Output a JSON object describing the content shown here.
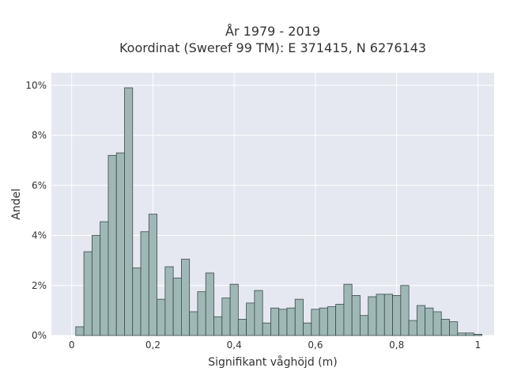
{
  "chart_data": {
    "type": "bar",
    "title_lines": [
      "År 1979 - 2019",
      "Koordinat (Sweref 99 TM): E 371415, N 6276143"
    ],
    "xlabel": "Signifikant våghöjd (m)",
    "ylabel": "Andel",
    "xlim": [
      -0.05,
      1.04
    ],
    "ylim": [
      0,
      10.5
    ],
    "x_ticks": [
      {
        "value": 0,
        "label": "0"
      },
      {
        "value": 0.2,
        "label": "0,2"
      },
      {
        "value": 0.4,
        "label": "0,4"
      },
      {
        "value": 0.6,
        "label": "0,6"
      },
      {
        "value": 0.8,
        "label": "0,8"
      },
      {
        "value": 1.0,
        "label": "1"
      }
    ],
    "y_ticks": [
      {
        "value": 0,
        "label": "0%"
      },
      {
        "value": 2,
        "label": "2%"
      },
      {
        "value": 4,
        "label": "4%"
      },
      {
        "value": 6,
        "label": "6%"
      },
      {
        "value": 8,
        "label": "8%"
      },
      {
        "value": 10,
        "label": "10%"
      }
    ],
    "bin_width": 0.02,
    "bin_starts": [
      0.01,
      0.03,
      0.05,
      0.07,
      0.09,
      0.11,
      0.13,
      0.15,
      0.17,
      0.19,
      0.21,
      0.23,
      0.25,
      0.27,
      0.29,
      0.31,
      0.33,
      0.35,
      0.37,
      0.39,
      0.41,
      0.43,
      0.45,
      0.47,
      0.49,
      0.51,
      0.53,
      0.55,
      0.57,
      0.59,
      0.61,
      0.63,
      0.65,
      0.67,
      0.69,
      0.71,
      0.73,
      0.75,
      0.77,
      0.79,
      0.81,
      0.83,
      0.85,
      0.87,
      0.89,
      0.91,
      0.93,
      0.95,
      0.97,
      0.99
    ],
    "values": [
      0.35,
      3.35,
      4.0,
      4.55,
      7.2,
      7.3,
      9.9,
      2.7,
      4.15,
      4.85,
      1.45,
      2.75,
      2.3,
      3.05,
      0.95,
      1.75,
      2.5,
      0.75,
      1.5,
      2.05,
      0.65,
      1.3,
      1.8,
      0.5,
      1.1,
      1.05,
      1.1,
      1.45,
      0.5,
      1.05,
      1.1,
      1.15,
      1.25,
      2.05,
      1.6,
      0.8,
      1.55,
      1.65,
      1.65,
      1.6,
      2.0,
      0.6,
      1.2,
      1.1,
      0.95,
      0.65,
      0.55,
      0.1,
      0.1,
      0.05
    ],
    "grid": true,
    "bar_color": "#9fb8b6",
    "bar_edge_color": "#3a4a48",
    "plot_bg": "#e5e8f0"
  }
}
